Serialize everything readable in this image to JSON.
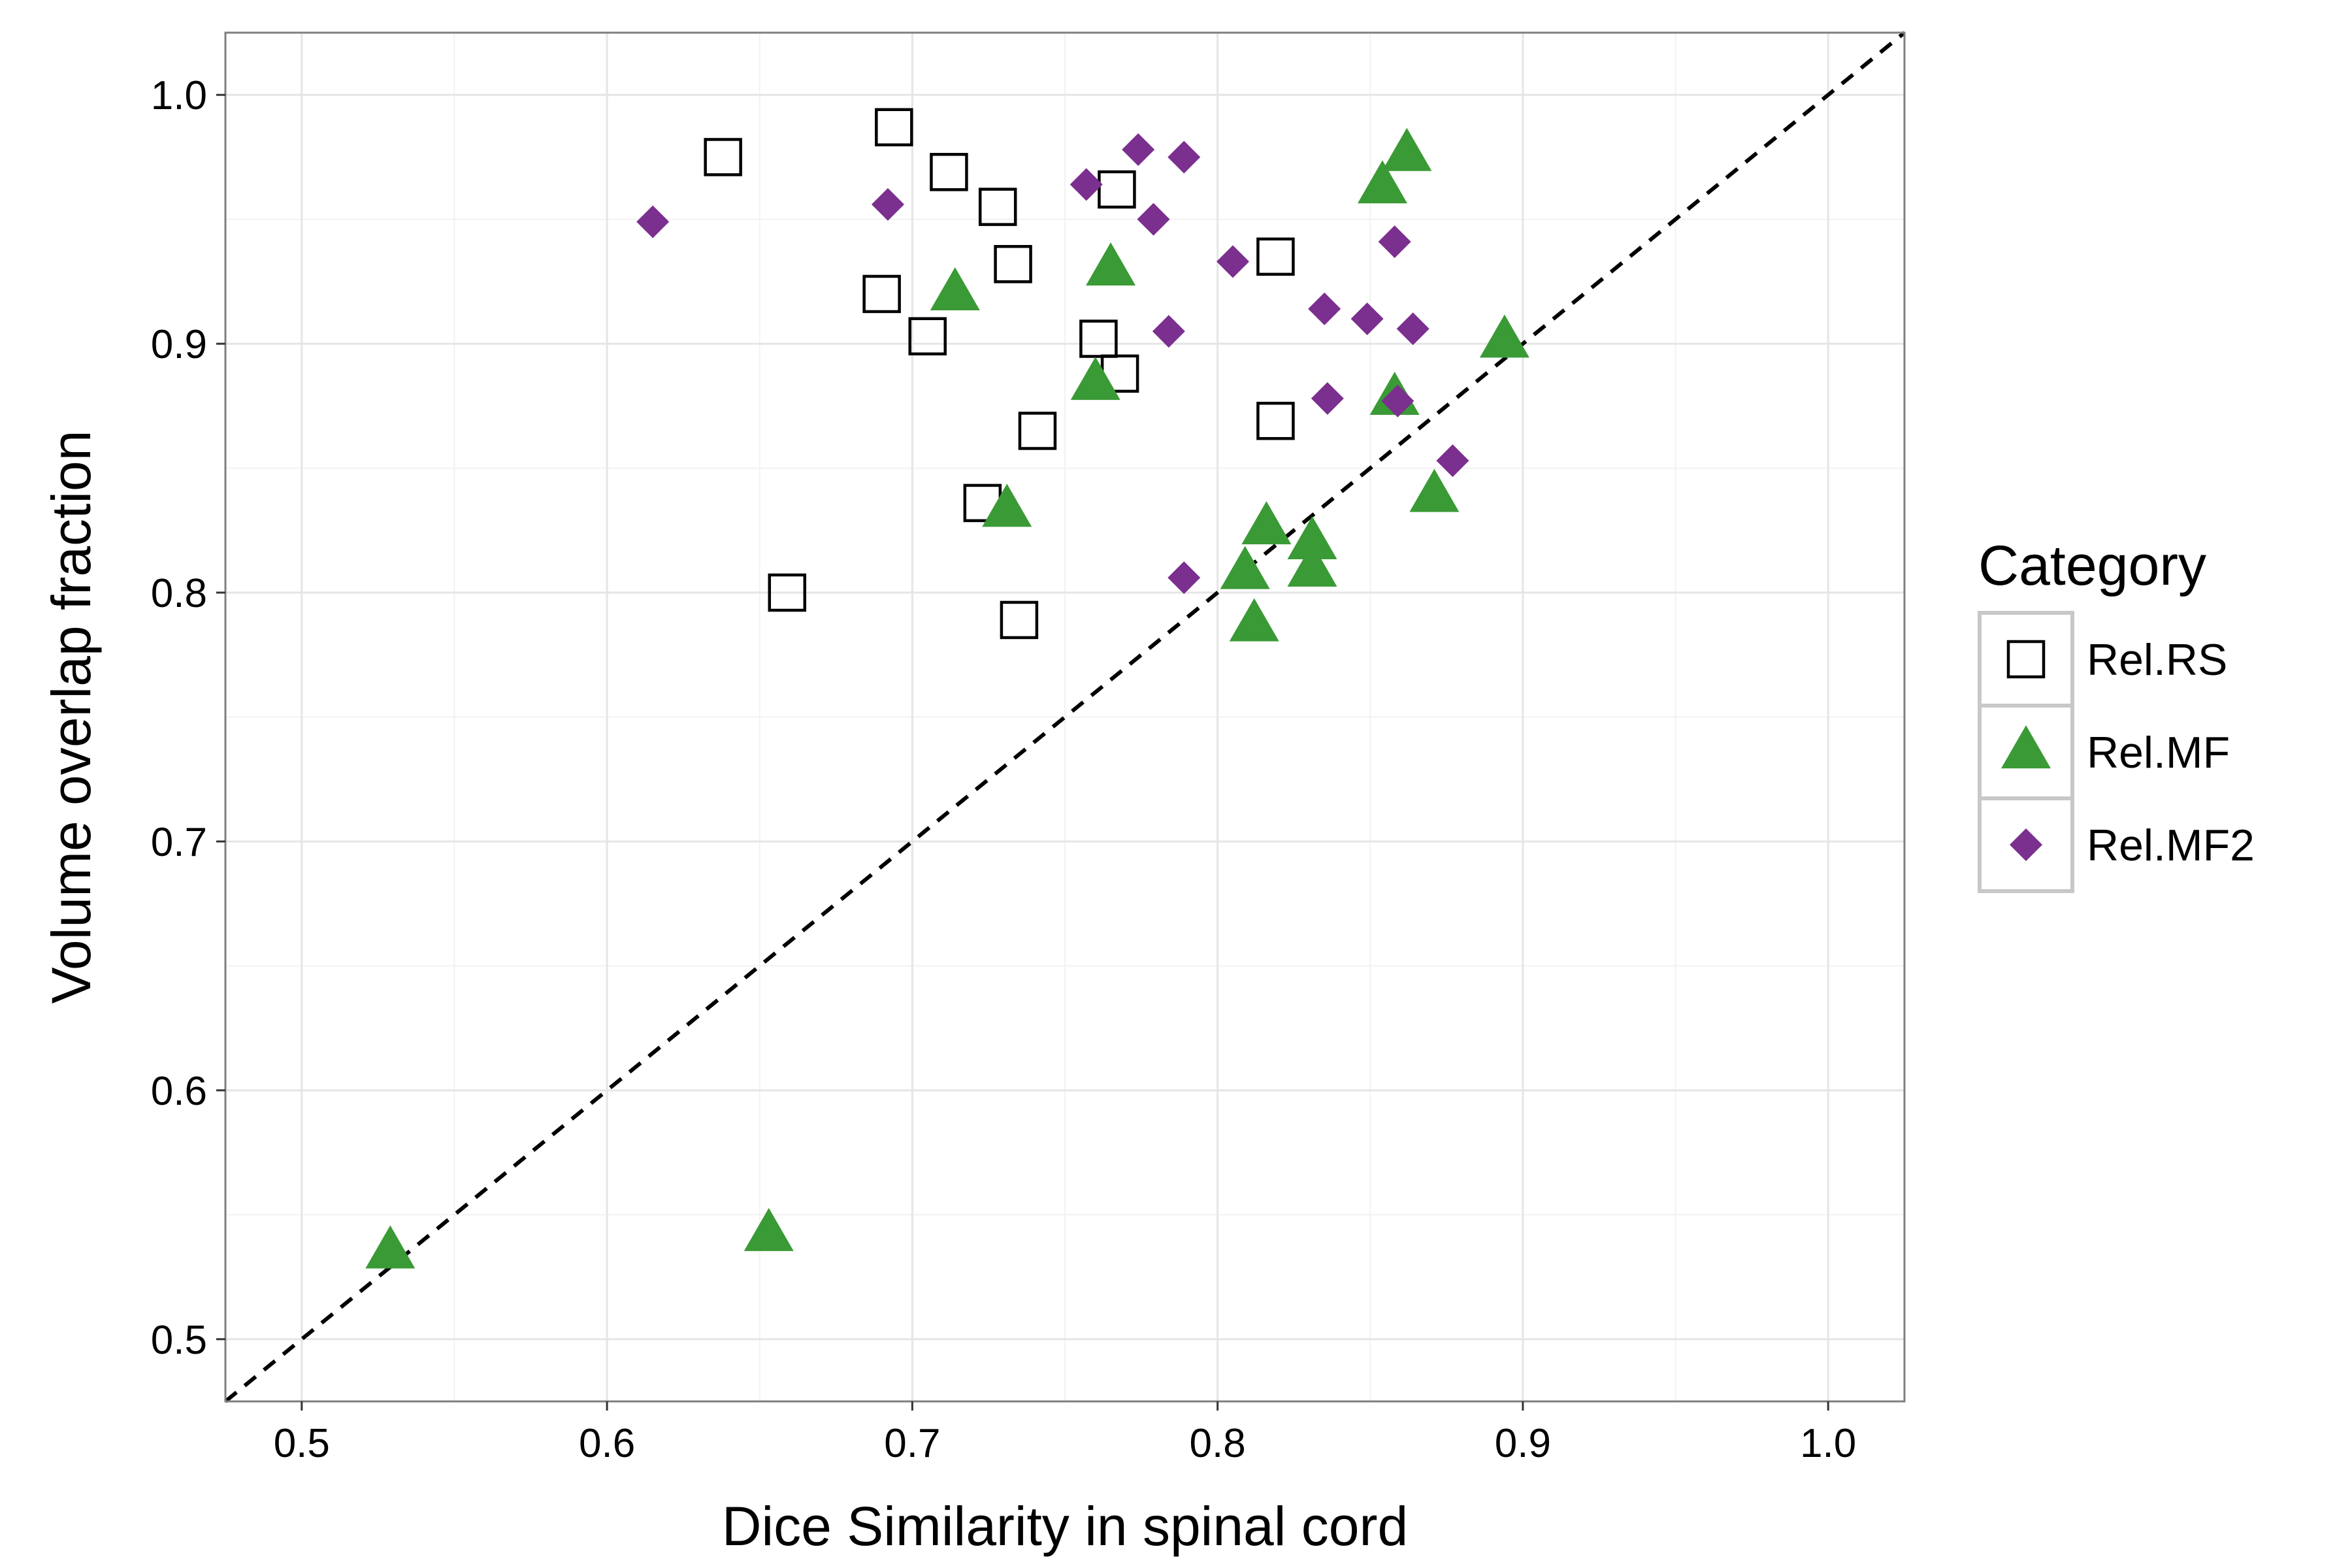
{
  "chart_data": {
    "type": "scatter",
    "xlabel": "Dice Similarity in spinal cord",
    "ylabel": "Volume overlap fraction",
    "xlim": [
      0.475,
      1.025
    ],
    "ylim": [
      0.475,
      1.025
    ],
    "x_ticks": [
      0.5,
      0.6,
      0.7,
      0.8,
      0.9,
      1.0
    ],
    "y_ticks": [
      0.5,
      0.6,
      0.7,
      0.8,
      0.9,
      1.0
    ],
    "x_tick_labels": [
      "0.5",
      "0.6",
      "0.7",
      "0.8",
      "0.9",
      "1.0"
    ],
    "y_tick_labels": [
      "0.5",
      "0.6",
      "0.7",
      "0.8",
      "0.9",
      "1.0"
    ],
    "grid": true,
    "reference_line": {
      "style": "dashed",
      "slope": 1,
      "intercept": 0,
      "color": "#000000"
    },
    "legend": {
      "title": "Category",
      "position": "right"
    },
    "series": [
      {
        "name": "Rel.RS",
        "marker": "open-square",
        "color": "#000000",
        "points": [
          [
            0.638,
            0.975
          ],
          [
            0.694,
            0.987
          ],
          [
            0.712,
            0.969
          ],
          [
            0.728,
            0.955
          ],
          [
            0.767,
            0.962
          ],
          [
            0.733,
            0.932
          ],
          [
            0.69,
            0.92
          ],
          [
            0.705,
            0.903
          ],
          [
            0.761,
            0.902
          ],
          [
            0.768,
            0.888
          ],
          [
            0.819,
            0.935
          ],
          [
            0.741,
            0.865
          ],
          [
            0.819,
            0.869
          ],
          [
            0.723,
            0.836
          ],
          [
            0.659,
            0.8
          ],
          [
            0.735,
            0.789
          ]
        ]
      },
      {
        "name": "Rel.MF",
        "marker": "filled-triangle",
        "color": "#3a9a35",
        "points": [
          [
            0.529,
            0.535
          ],
          [
            0.653,
            0.542
          ],
          [
            0.714,
            0.92
          ],
          [
            0.765,
            0.93
          ],
          [
            0.76,
            0.884
          ],
          [
            0.731,
            0.833
          ],
          [
            0.862,
            0.976
          ],
          [
            0.854,
            0.963
          ],
          [
            0.894,
            0.901
          ],
          [
            0.858,
            0.878
          ],
          [
            0.871,
            0.839
          ],
          [
            0.816,
            0.826
          ],
          [
            0.831,
            0.82
          ],
          [
            0.809,
            0.808
          ],
          [
            0.831,
            0.809
          ],
          [
            0.812,
            0.787
          ]
        ]
      },
      {
        "name": "Rel.MF2",
        "marker": "filled-diamond",
        "color": "#7b2f8e",
        "points": [
          [
            0.615,
            0.949
          ],
          [
            0.692,
            0.956
          ],
          [
            0.757,
            0.964
          ],
          [
            0.774,
            0.978
          ],
          [
            0.789,
            0.975
          ],
          [
            0.779,
            0.95
          ],
          [
            0.805,
            0.933
          ],
          [
            0.858,
            0.941
          ],
          [
            0.835,
            0.914
          ],
          [
            0.849,
            0.91
          ],
          [
            0.864,
            0.906
          ],
          [
            0.784,
            0.905
          ],
          [
            0.836,
            0.878
          ],
          [
            0.859,
            0.877
          ],
          [
            0.877,
            0.853
          ],
          [
            0.789,
            0.806
          ]
        ]
      }
    ]
  }
}
